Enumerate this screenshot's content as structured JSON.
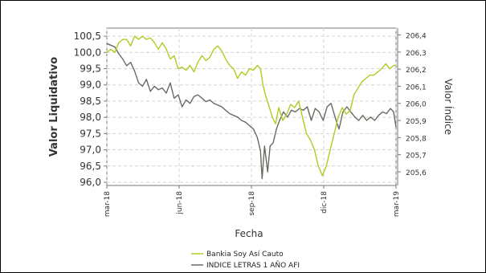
{
  "chart_data": {
    "type": "line",
    "xlabel": "Fecha",
    "ylabel": "Valor Liquidativo",
    "y2label": "Valor Índice",
    "x_ticks": [
      "mar-18",
      "jun-18",
      "sep-18",
      "dic-18",
      "mar-19"
    ],
    "x_range": [
      "2018-03-01",
      "2019-03-01"
    ],
    "ylim": [
      95.9,
      100.75
    ],
    "y_ticks": [
      "96,0",
      "96,5",
      "97,0",
      "97,5",
      "98,0",
      "98,5",
      "99,0",
      "99,5",
      "100,0",
      "100,5"
    ],
    "y2lim": [
      205.52,
      206.44
    ],
    "y2_ticks": [
      "205,6",
      "205,7",
      "205,8",
      "205,9",
      "206,0",
      "206,1",
      "206,2",
      "206,3",
      "206,4"
    ],
    "grid": true,
    "legend_position": "bottom",
    "series": [
      {
        "name": "Bankia Soy Así Cauto",
        "axis": "left",
        "color": "#b5c924",
        "points": [
          [
            "2018-03-01",
            100.0
          ],
          [
            "2018-03-06",
            100.1
          ],
          [
            "2018-03-11",
            100.0
          ],
          [
            "2018-03-16",
            100.3
          ],
          [
            "2018-03-21",
            100.4
          ],
          [
            "2018-03-26",
            100.4
          ],
          [
            "2018-03-31",
            100.2
          ],
          [
            "2018-04-05",
            100.5
          ],
          [
            "2018-04-10",
            100.4
          ],
          [
            "2018-04-15",
            100.5
          ],
          [
            "2018-04-20",
            100.4
          ],
          [
            "2018-04-25",
            100.45
          ],
          [
            "2018-04-30",
            100.3
          ],
          [
            "2018-05-05",
            100.1
          ],
          [
            "2018-05-10",
            100.3
          ],
          [
            "2018-05-15",
            100.1
          ],
          [
            "2018-05-20",
            99.8
          ],
          [
            "2018-05-25",
            99.9
          ],
          [
            "2018-05-30",
            99.5
          ],
          [
            "2018-06-04",
            99.55
          ],
          [
            "2018-06-09",
            99.45
          ],
          [
            "2018-06-14",
            99.6
          ],
          [
            "2018-06-19",
            99.4
          ],
          [
            "2018-06-24",
            99.7
          ],
          [
            "2018-06-29",
            99.9
          ],
          [
            "2018-07-04",
            99.75
          ],
          [
            "2018-07-09",
            99.85
          ],
          [
            "2018-07-14",
            100.1
          ],
          [
            "2018-07-19",
            100.2
          ],
          [
            "2018-07-24",
            100.05
          ],
          [
            "2018-07-29",
            99.8
          ],
          [
            "2018-08-03",
            99.6
          ],
          [
            "2018-08-08",
            99.5
          ],
          [
            "2018-08-13",
            99.2
          ],
          [
            "2018-08-18",
            99.4
          ],
          [
            "2018-08-23",
            99.3
          ],
          [
            "2018-08-28",
            99.5
          ],
          [
            "2018-09-02",
            99.45
          ],
          [
            "2018-09-07",
            99.6
          ],
          [
            "2018-09-11",
            99.5
          ],
          [
            "2018-09-14",
            99.0
          ],
          [
            "2018-09-17",
            98.7
          ],
          [
            "2018-09-21",
            98.4
          ],
          [
            "2018-09-26",
            98.0
          ],
          [
            "2018-09-30",
            97.8
          ],
          [
            "2018-10-04",
            98.3
          ],
          [
            "2018-10-09",
            97.9
          ],
          [
            "2018-10-14",
            98.1
          ],
          [
            "2018-10-19",
            98.4
          ],
          [
            "2018-10-24",
            98.3
          ],
          [
            "2018-10-29",
            98.5
          ],
          [
            "2018-11-03",
            98.0
          ],
          [
            "2018-11-08",
            97.5
          ],
          [
            "2018-11-13",
            97.3
          ],
          [
            "2018-11-18",
            97.0
          ],
          [
            "2018-11-23",
            96.5
          ],
          [
            "2018-11-28",
            96.2
          ],
          [
            "2018-12-03",
            96.5
          ],
          [
            "2018-12-08",
            97.0
          ],
          [
            "2018-12-13",
            97.5
          ],
          [
            "2018-12-18",
            98.0
          ],
          [
            "2018-12-23",
            98.3
          ],
          [
            "2018-12-28",
            98.1
          ],
          [
            "2019-01-02",
            98.2
          ],
          [
            "2019-01-07",
            98.7
          ],
          [
            "2019-01-12",
            98.9
          ],
          [
            "2019-01-17",
            99.1
          ],
          [
            "2019-01-22",
            99.2
          ],
          [
            "2019-01-27",
            99.3
          ],
          [
            "2019-02-01",
            99.3
          ],
          [
            "2019-02-06",
            99.4
          ],
          [
            "2019-02-11",
            99.5
          ],
          [
            "2019-02-16",
            99.65
          ],
          [
            "2019-02-21",
            99.5
          ],
          [
            "2019-02-26",
            99.6
          ],
          [
            "2019-03-01",
            99.6
          ]
        ]
      },
      {
        "name": "INDICE LETRAS 1 AÑO AFI",
        "axis": "right",
        "color": "#6b6a62",
        "points": [
          [
            "2018-03-01",
            206.35
          ],
          [
            "2018-03-06",
            206.34
          ],
          [
            "2018-03-11",
            206.33
          ],
          [
            "2018-03-16",
            206.29
          ],
          [
            "2018-03-21",
            206.26
          ],
          [
            "2018-03-26",
            206.22
          ],
          [
            "2018-03-31",
            206.24
          ],
          [
            "2018-04-05",
            206.19
          ],
          [
            "2018-04-10",
            206.12
          ],
          [
            "2018-04-15",
            206.1
          ],
          [
            "2018-04-20",
            206.14
          ],
          [
            "2018-04-25",
            206.07
          ],
          [
            "2018-04-30",
            206.1
          ],
          [
            "2018-05-05",
            206.08
          ],
          [
            "2018-05-10",
            206.09
          ],
          [
            "2018-05-15",
            206.06
          ],
          [
            "2018-05-20",
            206.12
          ],
          [
            "2018-05-25",
            206.03
          ],
          [
            "2018-05-30",
            206.05
          ],
          [
            "2018-06-04",
            205.98
          ],
          [
            "2018-06-09",
            206.02
          ],
          [
            "2018-06-14",
            206.0
          ],
          [
            "2018-06-19",
            206.04
          ],
          [
            "2018-06-24",
            206.05
          ],
          [
            "2018-06-29",
            206.03
          ],
          [
            "2018-07-04",
            206.01
          ],
          [
            "2018-07-09",
            206.02
          ],
          [
            "2018-07-14",
            206.0
          ],
          [
            "2018-07-19",
            205.99
          ],
          [
            "2018-07-24",
            205.98
          ],
          [
            "2018-07-29",
            205.96
          ],
          [
            "2018-08-03",
            205.94
          ],
          [
            "2018-08-08",
            205.93
          ],
          [
            "2018-08-13",
            205.92
          ],
          [
            "2018-08-18",
            205.9
          ],
          [
            "2018-08-23",
            205.89
          ],
          [
            "2018-08-28",
            205.87
          ],
          [
            "2018-09-02",
            205.85
          ],
          [
            "2018-09-07",
            205.8
          ],
          [
            "2018-09-11",
            205.72
          ],
          [
            "2018-09-13",
            205.56
          ],
          [
            "2018-09-16",
            205.75
          ],
          [
            "2018-09-20",
            205.6
          ],
          [
            "2018-09-23",
            205.75
          ],
          [
            "2018-09-27",
            205.77
          ],
          [
            "2018-10-01",
            205.85
          ],
          [
            "2018-10-05",
            205.9
          ],
          [
            "2018-10-10",
            205.95
          ],
          [
            "2018-10-15",
            205.92
          ],
          [
            "2018-10-20",
            205.96
          ],
          [
            "2018-10-25",
            205.95
          ],
          [
            "2018-10-30",
            205.97
          ],
          [
            "2018-11-04",
            205.96
          ],
          [
            "2018-11-09",
            205.98
          ],
          [
            "2018-11-14",
            205.9
          ],
          [
            "2018-11-19",
            205.97
          ],
          [
            "2018-11-24",
            205.95
          ],
          [
            "2018-11-29",
            205.9
          ],
          [
            "2018-12-04",
            205.98
          ],
          [
            "2018-12-09",
            206.0
          ],
          [
            "2018-12-14",
            205.92
          ],
          [
            "2018-12-19",
            205.85
          ],
          [
            "2018-12-24",
            205.95
          ],
          [
            "2018-12-29",
            205.98
          ],
          [
            "2019-01-03",
            205.95
          ],
          [
            "2019-01-08",
            205.92
          ],
          [
            "2019-01-13",
            205.9
          ],
          [
            "2019-01-18",
            205.93
          ],
          [
            "2019-01-23",
            205.9
          ],
          [
            "2019-01-28",
            205.92
          ],
          [
            "2019-02-02",
            205.9
          ],
          [
            "2019-02-07",
            205.93
          ],
          [
            "2019-02-12",
            205.95
          ],
          [
            "2019-02-17",
            205.94
          ],
          [
            "2019-02-22",
            205.97
          ],
          [
            "2019-02-26",
            205.95
          ],
          [
            "2019-03-01",
            205.86
          ]
        ]
      }
    ]
  }
}
